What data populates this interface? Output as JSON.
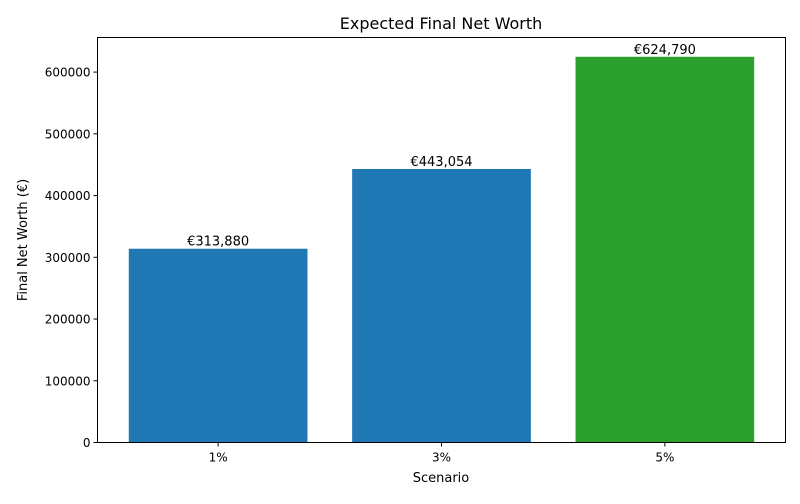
{
  "chart_data": {
    "type": "bar",
    "title": "Expected Final Net Worth",
    "xlabel": "Scenario",
    "ylabel": "Final Net Worth (€)",
    "categories": [
      "1%",
      "3%",
      "5%"
    ],
    "values": [
      313880,
      443054,
      624790
    ],
    "data_labels": [
      "€313,880",
      "€443,054",
      "€624,790"
    ],
    "colors": [
      "#1f77b4",
      "#1f77b4",
      "#2ca02c"
    ],
    "ylim": [
      0,
      656030
    ],
    "yticks": [
      0,
      100000,
      200000,
      300000,
      400000,
      500000,
      600000
    ],
    "ytick_labels": [
      "0",
      "100000",
      "200000",
      "300000",
      "400000",
      "500000",
      "600000"
    ],
    "grid": false,
    "legend": "none"
  }
}
